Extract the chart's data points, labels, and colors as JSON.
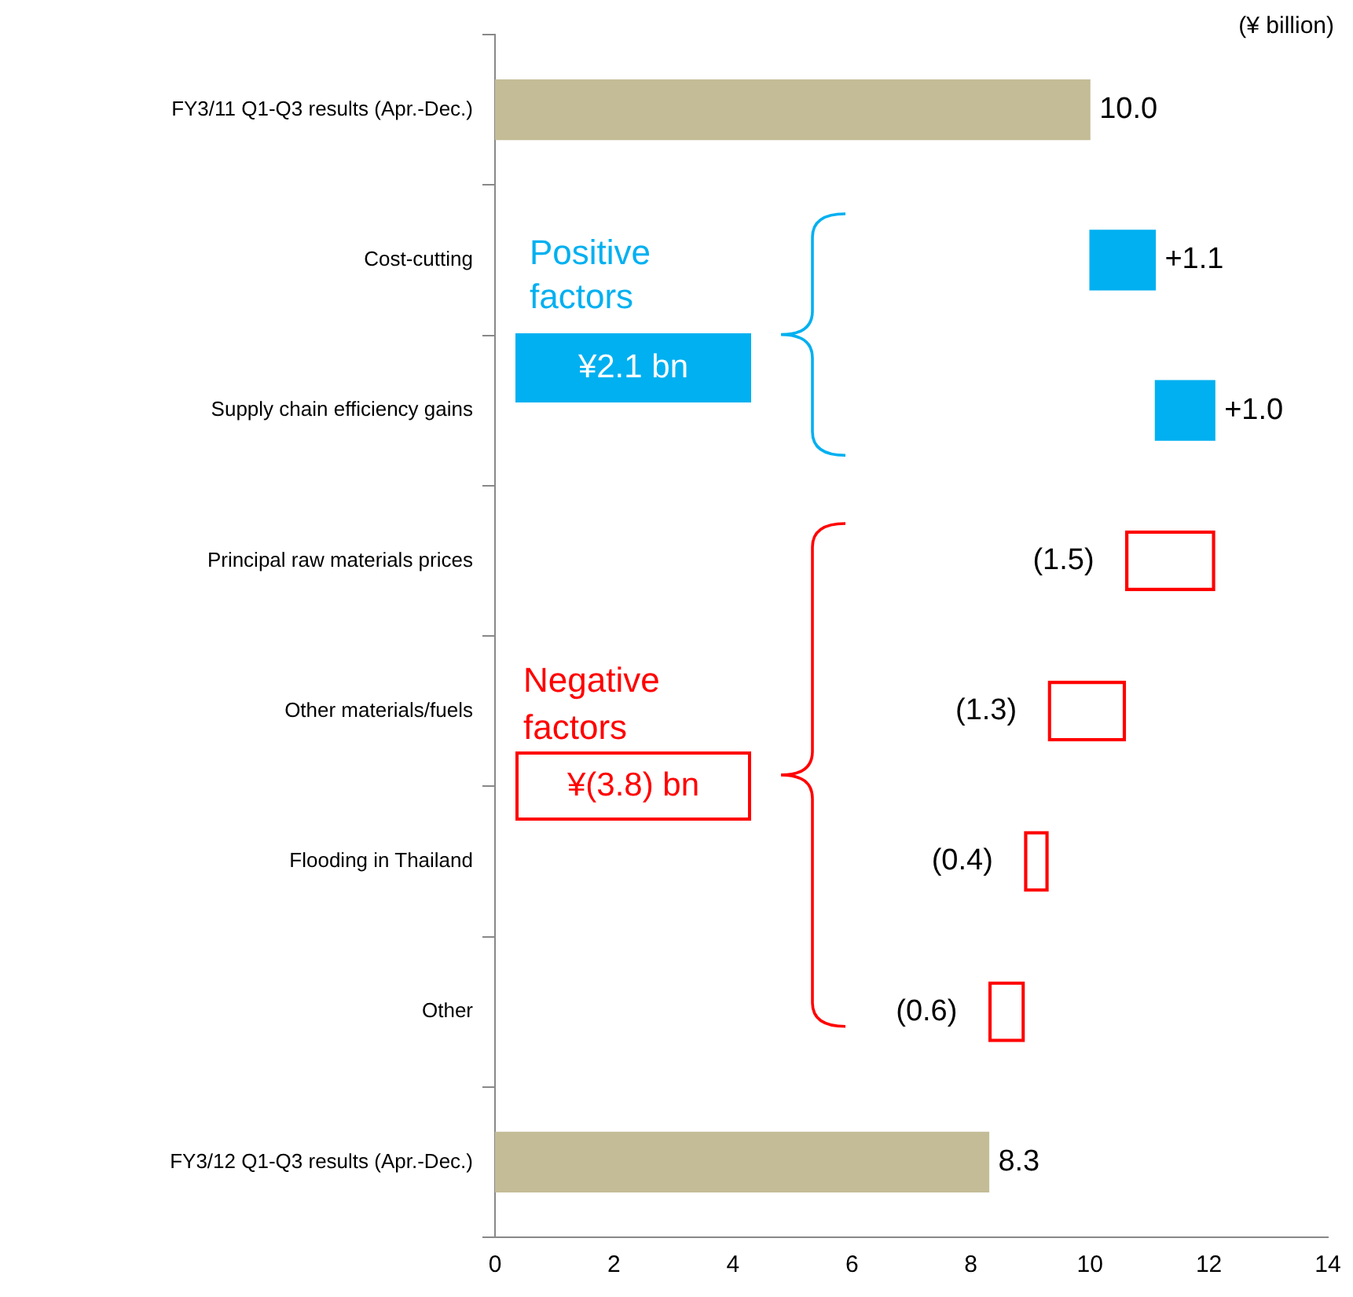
{
  "chart_data": {
    "type": "bar",
    "orientation": "horizontal",
    "categories": [
      "FY3/11 Q1-Q3 results (Apr.-Dec.)",
      "Cost-cutting",
      "Supply chain efficiency gains",
      "Principal raw materials prices",
      "Other materials/fuels",
      "Flooding in Thailand",
      "Other",
      "FY3/12 Q1-Q3 results (Apr.-Dec.)"
    ],
    "values": [
      10.0,
      1.1,
      1.0,
      -1.5,
      -1.3,
      -0.4,
      -0.6,
      8.3
    ],
    "base": [
      0,
      10.0,
      11.1,
      12.1,
      10.6,
      9.3,
      8.9,
      0
    ],
    "colors": [
      "#c4bc96",
      "#00b0f0",
      "#00b0f0",
      "#ff0000",
      "#ff0000",
      "#ff0000",
      "#ff0000",
      "#c4bc96"
    ],
    "value_labels": [
      "10.0",
      "+1.1",
      "+1.0",
      "(1.5)",
      "(1.3)",
      "(0.4)",
      "(0.6)",
      "8.3"
    ],
    "xlim": [
      0,
      14
    ],
    "xticks": [
      0,
      2,
      4,
      6,
      8,
      10,
      12,
      14
    ],
    "grid": false,
    "legend": false,
    "annotations": [
      "(¥ billion)",
      "Positive factors",
      "¥2.1 bn",
      "Negative factors",
      "¥(3.8) bn"
    ]
  }
}
